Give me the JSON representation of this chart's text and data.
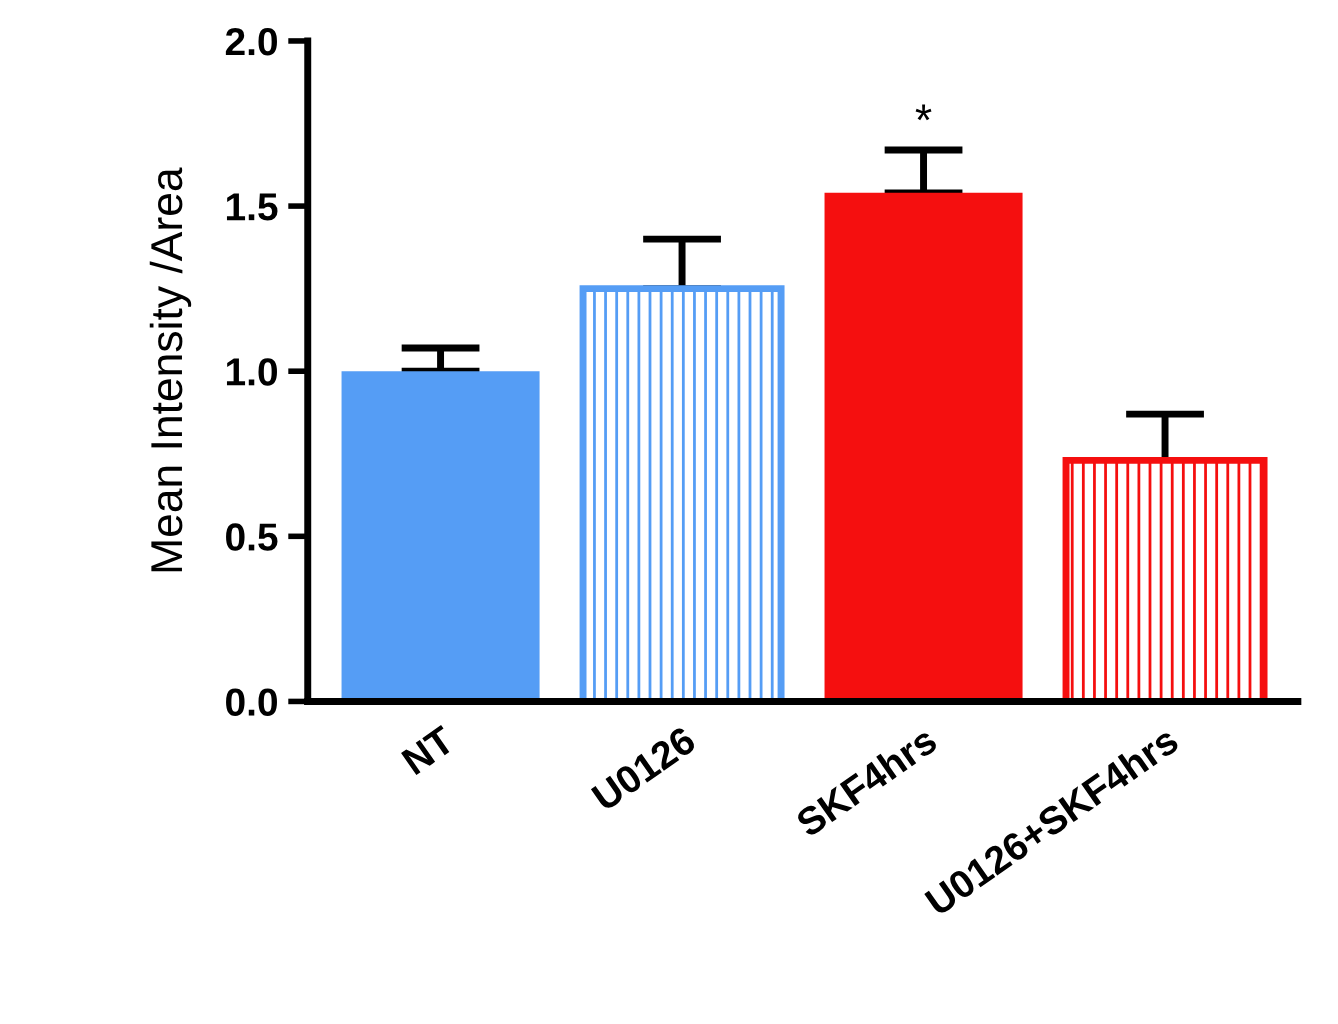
{
  "chart_data": {
    "type": "bar",
    "ylabel": "Mean Intensity /Area",
    "categories": [
      "NT",
      "U0126",
      "SKF4hrs",
      "U0126+SKF4hrs"
    ],
    "values": [
      1.0,
      1.25,
      1.54,
      0.73
    ],
    "errors": [
      0.07,
      0.15,
      0.13,
      0.14
    ],
    "colors": [
      "#559df5",
      "#559df5",
      "#f50f0f",
      "#f50f0f"
    ],
    "ylim": [
      0,
      2.0
    ],
    "yticks": [
      {
        "value": 0,
        "label": "0.0"
      },
      {
        "value": 0.5,
        "label": "0.5"
      },
      {
        "value": 1.0,
        "label": "1.0"
      },
      {
        "value": 1.5,
        "label": "1.5"
      },
      {
        "value": 2.0,
        "label": "2.0"
      }
    ],
    "annotations": [
      "*"
    ],
    "grid": false,
    "legend": false
  }
}
